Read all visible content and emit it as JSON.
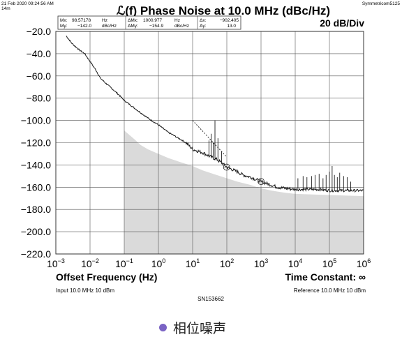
{
  "header": {
    "timestamp": "21 Feb 2020 09:24:56 AM",
    "timestamp_line2": "14m",
    "brand": "Symmetricom5125"
  },
  "chart_data": {
    "type": "line",
    "title": "ℒ(f) Phase Noise at 10.0 MHz (dBc/Hz)",
    "scale_label": "20 dB/Div",
    "xlabel": "Offset Frequency (Hz)",
    "x_scale": "log",
    "xlim": [
      0.001,
      1000000
    ],
    "ylim": [
      -220,
      -20
    ],
    "x_ticks": [
      {
        "value": 0.001,
        "base": "10",
        "exp": "−3"
      },
      {
        "value": 0.01,
        "base": "10",
        "exp": "−2"
      },
      {
        "value": 0.1,
        "base": "10",
        "exp": "−1"
      },
      {
        "value": 1,
        "base": "10",
        "exp": "0"
      },
      {
        "value": 10,
        "base": "10",
        "exp": "1"
      },
      {
        "value": 100,
        "base": "10",
        "exp": "2"
      },
      {
        "value": 1000,
        "base": "10",
        "exp": "3"
      },
      {
        "value": 10000,
        "base": "10",
        "exp": "4"
      },
      {
        "value": 100000,
        "base": "10",
        "exp": "5"
      },
      {
        "value": 1000000,
        "base": "10",
        "exp": "6"
      }
    ],
    "y_ticks": [
      "−20.0",
      "−40.0",
      "−60.0",
      "−80.0",
      "−100.0",
      "−120.0",
      "−140.0",
      "−160.0",
      "−180.0",
      "−200.0",
      "−220.0"
    ],
    "grid": true,
    "series": [
      {
        "role": "phase-noise",
        "color": "#1a1a1a",
        "points": [
          [
            0.002,
            -24
          ],
          [
            0.003,
            -31
          ],
          [
            0.005,
            -37
          ],
          [
            0.007,
            -40
          ],
          [
            0.01,
            -47
          ],
          [
            0.015,
            -55
          ],
          [
            0.02,
            -62
          ],
          [
            0.03,
            -67
          ],
          [
            0.05,
            -73
          ],
          [
            0.07,
            -77
          ],
          [
            0.1,
            -82
          ],
          [
            0.2,
            -89
          ],
          [
            0.3,
            -93
          ],
          [
            0.5,
            -98
          ],
          [
            0.7,
            -101
          ],
          [
            1,
            -104
          ],
          [
            2,
            -111
          ],
          [
            3,
            -114
          ],
          [
            5,
            -118
          ],
          [
            7,
            -121
          ],
          [
            10,
            -126
          ],
          [
            20,
            -129
          ],
          [
            30,
            -132
          ],
          [
            50,
            -135
          ],
          [
            70,
            -138
          ],
          [
            100,
            -142
          ],
          [
            200,
            -146
          ],
          [
            300,
            -149
          ],
          [
            500,
            -151
          ],
          [
            700,
            -153
          ],
          [
            1000,
            -155
          ],
          [
            2000,
            -158
          ],
          [
            3000,
            -160
          ],
          [
            5000,
            -161
          ],
          [
            10000,
            -162
          ],
          [
            20000,
            -162
          ],
          [
            50000,
            -162
          ],
          [
            100000,
            -163
          ],
          [
            300000,
            -163
          ],
          [
            1000000,
            -163
          ]
        ]
      },
      {
        "role": "noise-floor",
        "color": "#dadada",
        "points": [
          [
            0.1,
            -109
          ],
          [
            0.2,
            -117
          ],
          [
            0.3,
            -122
          ],
          [
            0.5,
            -126
          ],
          [
            1,
            -130
          ],
          [
            2,
            -134
          ],
          [
            5,
            -138
          ],
          [
            10,
            -141
          ],
          [
            20,
            -145
          ],
          [
            50,
            -149
          ],
          [
            100,
            -152
          ],
          [
            200,
            -155
          ],
          [
            500,
            -158
          ],
          [
            1000,
            -161
          ],
          [
            2000,
            -163
          ],
          [
            5000,
            -165
          ],
          [
            10000,
            -166
          ],
          [
            100000,
            -167
          ],
          [
            1000000,
            -168
          ]
        ]
      }
    ],
    "spurs": [
      {
        "x": 30,
        "top": -118
      },
      {
        "x": 35,
        "top": -112
      },
      {
        "x": 40,
        "top": -120
      },
      {
        "x": 45,
        "top": -100
      },
      {
        "x": 55,
        "top": -116
      },
      {
        "x": 70,
        "top": -128
      },
      {
        "x": 12000,
        "top": -152
      },
      {
        "x": 17000,
        "top": -150
      },
      {
        "x": 22000,
        "top": -151
      },
      {
        "x": 30000,
        "top": -150
      },
      {
        "x": 38000,
        "top": -149
      },
      {
        "x": 50000,
        "top": -148
      },
      {
        "x": 65000,
        "top": -152
      },
      {
        "x": 80000,
        "top": -149
      },
      {
        "x": 100000,
        "top": -146
      },
      {
        "x": 120000,
        "top": -141
      },
      {
        "x": 140000,
        "top": -149
      },
      {
        "x": 170000,
        "top": -151
      },
      {
        "x": 200000,
        "top": -147
      },
      {
        "x": 260000,
        "top": -150
      },
      {
        "x": 330000,
        "top": -151
      },
      {
        "x": 420000,
        "top": -155
      }
    ],
    "markers": [
      {
        "x": 98.57,
        "y": -142.0
      },
      {
        "x": 1000.977,
        "y": -154.9
      }
    ],
    "slope_line": {
      "from": [
        10,
        -100
      ],
      "to": [
        100,
        -133
      ]
    }
  },
  "marker_readout": {
    "mx_label": "Mx:",
    "mx_value": "98.57178",
    "mx_unit": "Hz",
    "my_label": "My:",
    "my_value": "−142.0",
    "my_unit": "dBc/Hz",
    "dmx_label": "ΔMx:",
    "dmx_value": "1000.977",
    "dmx_unit": "Hz",
    "dmy_label": "ΔMy:",
    "dmy_value": "−154.9",
    "dmy_unit": "dBc/Hz",
    "dx_label": "Δx:",
    "dx_value": "−902.405",
    "dy_label": "Δy:",
    "dy_value": "13.0"
  },
  "footer": {
    "time_constant": "Time Constant: ∞",
    "input": "Input 10.0 MHz 10 dBm",
    "reference": "Reference 10.0 MHz 10 dBm",
    "serial": "SN153662"
  },
  "caption": "相位噪声",
  "colors": {
    "grid": "#555555",
    "fill": "#dadada",
    "trace": "#1a1a1a",
    "bullet": "#7a63c4"
  }
}
